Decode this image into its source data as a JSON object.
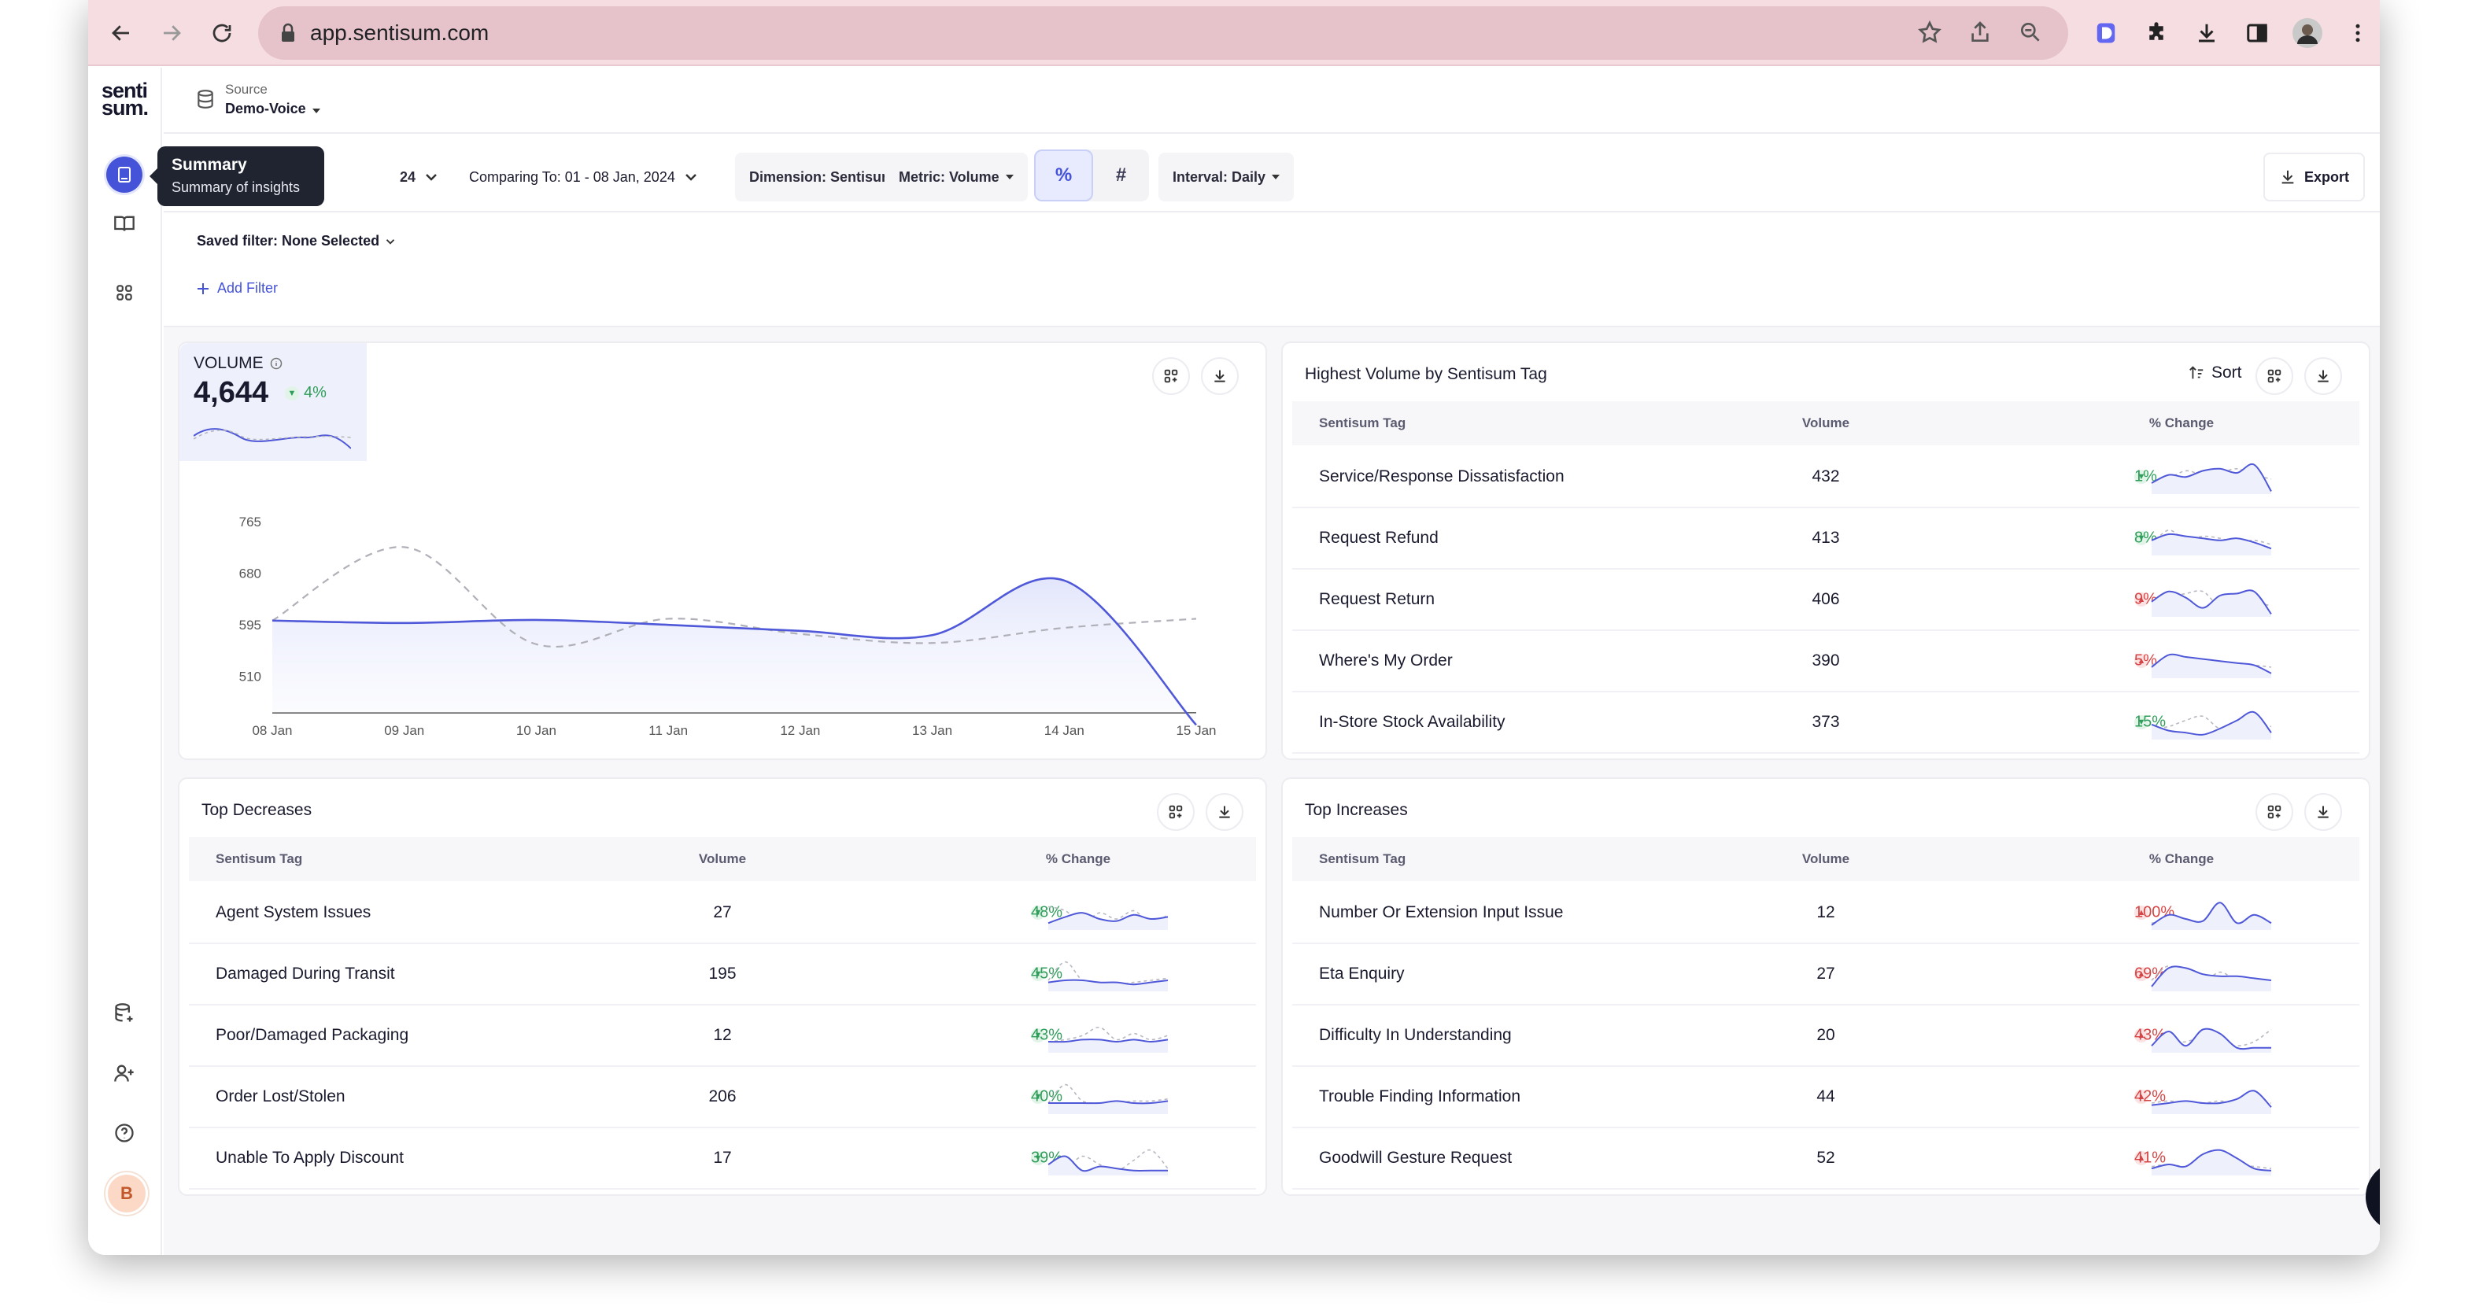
{
  "browser": {
    "url": "app.sentisum.com"
  },
  "logo": {
    "line1": "senti",
    "line2": "sum."
  },
  "source": {
    "label": "Source",
    "value": "Demo-Voice"
  },
  "tooltip": {
    "title": "Summary",
    "subtitle": "Summary of insights"
  },
  "toolbar": {
    "date_partial": "24",
    "comparing": "Comparing To: 01 - 08 Jan, 2024",
    "dimension": "Dimension: Sentisum Tag",
    "metric": "Metric: Volume",
    "percent_label": "%",
    "hash_label": "#",
    "interval": "Interval: Daily",
    "export": "Export"
  },
  "filters": {
    "saved": "Saved filter: None Selected",
    "add": "Add Filter"
  },
  "avatar": {
    "initial": "B"
  },
  "volume_card": {
    "label": "VOLUME",
    "value": "4,644",
    "change": "4%",
    "chart_data": {
      "type": "line",
      "categories": [
        "08 Jan",
        "09 Jan",
        "10 Jan",
        "11 Jan",
        "12 Jan",
        "13 Jan",
        "14 Jan",
        "15 Jan"
      ],
      "yticks": [
        "765",
        "680",
        "595",
        "510"
      ],
      "ylim": [
        450,
        800
      ],
      "series": [
        {
          "values": [
            602,
            598,
            603,
            595,
            585,
            578,
            668,
            430
          ],
          "color": "#4f58d8"
        },
        {
          "values": [
            602,
            723,
            563,
            605,
            580,
            565,
            590,
            605
          ],
          "color": "#b0b0b8",
          "dashed": true
        }
      ]
    }
  },
  "highest": {
    "title": "Highest Volume by Sentisum Tag",
    "sort": "Sort",
    "headers": [
      "Sentisum Tag",
      "Volume",
      "% Change"
    ],
    "rows": [
      {
        "tag": "Service/Response Dissatisfaction",
        "volume": "432",
        "change": "1%",
        "dir": "down",
        "spark": [
          10,
          6,
          7,
          4,
          3,
          5,
          1,
          14
        ],
        "spark2": [
          12,
          8,
          4,
          6,
          5,
          3,
          6,
          8
        ]
      },
      {
        "tag": "Request Refund",
        "volume": "413",
        "change": "8%",
        "dir": "down",
        "spark": [
          8,
          5,
          6,
          7,
          8,
          7,
          9,
          12
        ],
        "spark2": [
          10,
          3,
          8,
          6,
          7,
          9,
          8,
          10
        ]
      },
      {
        "tag": "Request Return",
        "volume": "406",
        "change": "9%",
        "dir": "up",
        "spark": [
          8,
          3,
          6,
          11,
          5,
          4,
          3,
          14
        ],
        "spark2": [
          9,
          6,
          4,
          3,
          10,
          5,
          8,
          10
        ]
      },
      {
        "tag": "Where's My Order",
        "volume": "390",
        "change": "5%",
        "dir": "up",
        "spark": [
          10,
          4,
          5,
          6,
          7,
          8,
          9,
          13
        ],
        "spark2": [
          9,
          6,
          8,
          7,
          8,
          9,
          9,
          10
        ]
      },
      {
        "tag": "In-Store Stock Availability",
        "volume": "373",
        "change": "15%",
        "dir": "down",
        "spark": [
          8,
          11,
          12,
          13,
          10,
          6,
          2,
          12
        ],
        "spark2": [
          10,
          9,
          6,
          4,
          10,
          8,
          7,
          9
        ]
      }
    ]
  },
  "decreases": {
    "title": "Top Decreases",
    "headers": [
      "Sentisum Tag",
      "Volume",
      "% Change"
    ],
    "rows": [
      {
        "tag": "Agent System Issues",
        "volume": "27",
        "change": "48%",
        "dir": "down",
        "spark": [
          12,
          9,
          7,
          10,
          11,
          8,
          10,
          9
        ],
        "spark2": [
          4,
          6,
          12,
          7,
          10,
          6,
          12,
          8
        ]
      },
      {
        "tag": "Damaged During Transit",
        "volume": "195",
        "change": "45%",
        "dir": "down",
        "spark": [
          11,
          10,
          10,
          11,
          11,
          12,
          11,
          10
        ],
        "spark2": [
          10,
          1,
          10,
          11,
          12,
          11,
          10,
          9
        ]
      },
      {
        "tag": "Poor/Damaged Packaging",
        "volume": "12",
        "change": "43%",
        "dir": "down",
        "spark": [
          10,
          10,
          9,
          9,
          10,
          9,
          10,
          9
        ],
        "spark2": [
          10,
          9,
          7,
          3,
          9,
          6,
          9,
          7
        ]
      },
      {
        "tag": "Order Lost/Stolen",
        "volume": "206",
        "change": "40%",
        "dir": "down",
        "spark": [
          10,
          10,
          10,
          10,
          9,
          10,
          10,
          9
        ],
        "spark2": [
          10,
          1,
          9,
          10,
          10,
          9,
          9,
          8
        ]
      },
      {
        "tag": "Unable To Apply Discount",
        "volume": "17",
        "change": "39%",
        "dir": "down",
        "spark": [
          10,
          6,
          13,
          11,
          12,
          13,
          13,
          13
        ],
        "spark2": [
          12,
          12,
          6,
          10,
          13,
          8,
          3,
          12
        ]
      }
    ]
  },
  "increases": {
    "title": "Top Increases",
    "headers": [
      "Sentisum Tag",
      "Volume",
      "% Change"
    ],
    "rows": [
      {
        "tag": "Number Or Extension Input Issue",
        "volume": "12",
        "change": "100%",
        "dir": "up",
        "spark": [
          13,
          8,
          10,
          11,
          2,
          12,
          8,
          12
        ],
        "spark2": [
          12,
          11,
          12,
          12,
          6,
          12,
          11,
          12
        ]
      },
      {
        "tag": "Eta Enquiry",
        "volume": "27",
        "change": "69%",
        "dir": "up",
        "spark": [
          13,
          4,
          4,
          7,
          8,
          8,
          9,
          10
        ],
        "spark2": [
          10,
          3,
          10,
          11,
          6,
          10,
          9,
          11
        ]
      },
      {
        "tag": "Difficulty In Understanding",
        "volume": "20",
        "change": "43%",
        "dir": "up",
        "spark": [
          12,
          5,
          12,
          4,
          6,
          13,
          13,
          13
        ],
        "spark2": [
          12,
          11,
          10,
          8,
          10,
          12,
          10,
          4
        ]
      },
      {
        "tag": "Trouble Finding Information",
        "volume": "44",
        "change": "42%",
        "dir": "up",
        "spark": [
          11,
          10,
          9,
          10,
          10,
          8,
          4,
          12
        ],
        "spark2": [
          10,
          9,
          10,
          10,
          9,
          10,
          9,
          10
        ]
      },
      {
        "tag": "Goodwill Gesture Request",
        "volume": "52",
        "change": "41%",
        "dir": "up",
        "spark": [
          12,
          10,
          11,
          5,
          3,
          7,
          12,
          13
        ],
        "spark2": [
          11,
          10,
          11,
          9,
          8,
          10,
          11,
          12
        ]
      }
    ]
  }
}
